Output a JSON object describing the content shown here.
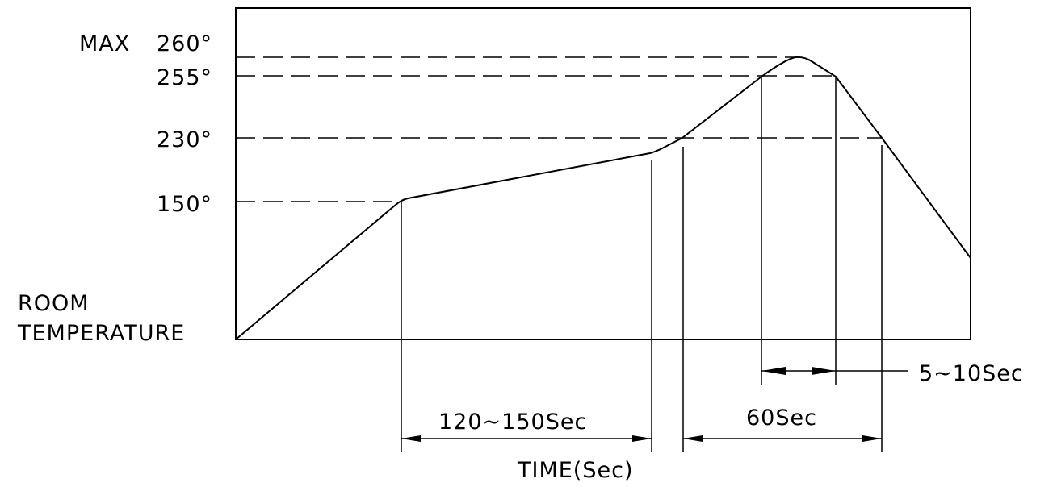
{
  "diagram": {
    "max_prefix": "MAX",
    "temp_labels": {
      "t260": "260°",
      "t255": "255°",
      "t230": "230°",
      "t150": "150°"
    },
    "room_line1": "ROOM",
    "room_line2": "TEMPERATURE",
    "dims": {
      "preheat": "120~150Sec",
      "reflow": "60Sec",
      "peak": "5~10Sec"
    },
    "x_axis_label": "TIME(Sec)"
  }
}
